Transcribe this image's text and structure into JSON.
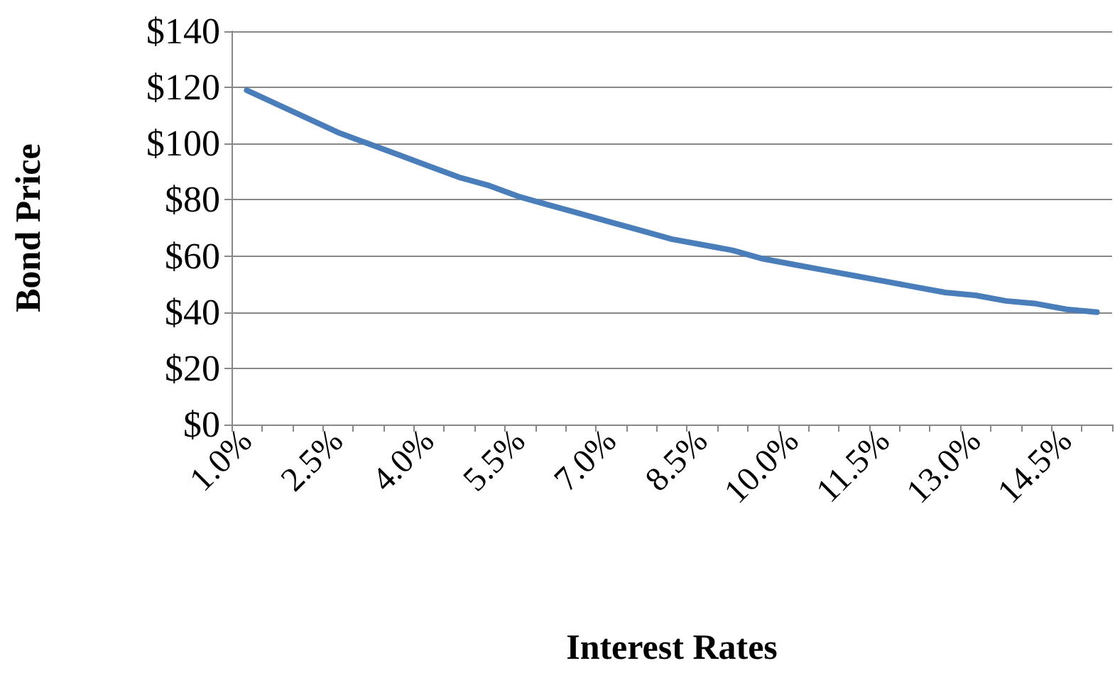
{
  "chart_data": {
    "type": "line",
    "xlabel": "Interest Rates",
    "ylabel": "Bond Price",
    "categories": [
      "1.0%",
      null,
      null,
      "2.5%",
      null,
      null,
      "4.0%",
      null,
      null,
      "5.5%",
      null,
      null,
      "7.0%",
      null,
      null,
      "8.5%",
      null,
      null,
      "10.0%",
      null,
      null,
      "11.5%",
      null,
      null,
      "13.0%",
      null,
      null,
      "14.5%",
      null
    ],
    "series": [
      {
        "color": "#4a7ebb",
        "values": [
          119,
          114,
          109,
          104,
          100,
          96,
          92,
          88,
          85,
          81,
          78,
          75,
          72,
          69,
          66,
          64,
          62,
          59,
          57,
          55,
          53,
          51,
          49,
          47,
          46,
          44,
          43,
          41,
          40
        ]
      }
    ],
    "ylim": [
      0,
      140
    ],
    "yticks": [
      {
        "value": 0,
        "label": "$0"
      },
      {
        "value": 20,
        "label": "$20"
      },
      {
        "value": 40,
        "label": "$40"
      },
      {
        "value": 60,
        "label": "$60"
      },
      {
        "value": 80,
        "label": "$80"
      },
      {
        "value": 100,
        "label": "$100"
      },
      {
        "value": 120,
        "label": "$120"
      },
      {
        "value": 140,
        "label": "$140"
      }
    ],
    "grid": "y",
    "marker": "none",
    "line_style": "solid"
  }
}
